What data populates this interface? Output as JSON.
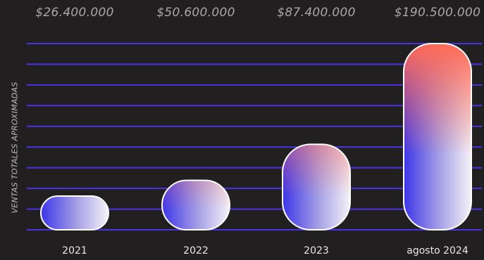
{
  "chart_data": {
    "type": "bar",
    "categories": [
      "2021",
      "2022",
      "2023",
      "agosto 2024"
    ],
    "values": [
      26400000,
      50600000,
      87400000,
      190500000
    ],
    "value_labels": [
      "$26.400.000",
      "$50.600.000",
      "$87.400.000",
      "$190.500.000"
    ],
    "ylabel": "VENTAS TOTALES APROXIMADAS",
    "ylim": [
      0,
      190500000
    ],
    "grid": true,
    "colors": {
      "background": "#221f20",
      "gridline": "#4b32e0",
      "bar_gradient_start": "#3d35e8",
      "bar_gradient_end": "#f4f2f8",
      "bar_top_highlight": "#ff6a55",
      "bar_outline": "#ffffff"
    }
  }
}
